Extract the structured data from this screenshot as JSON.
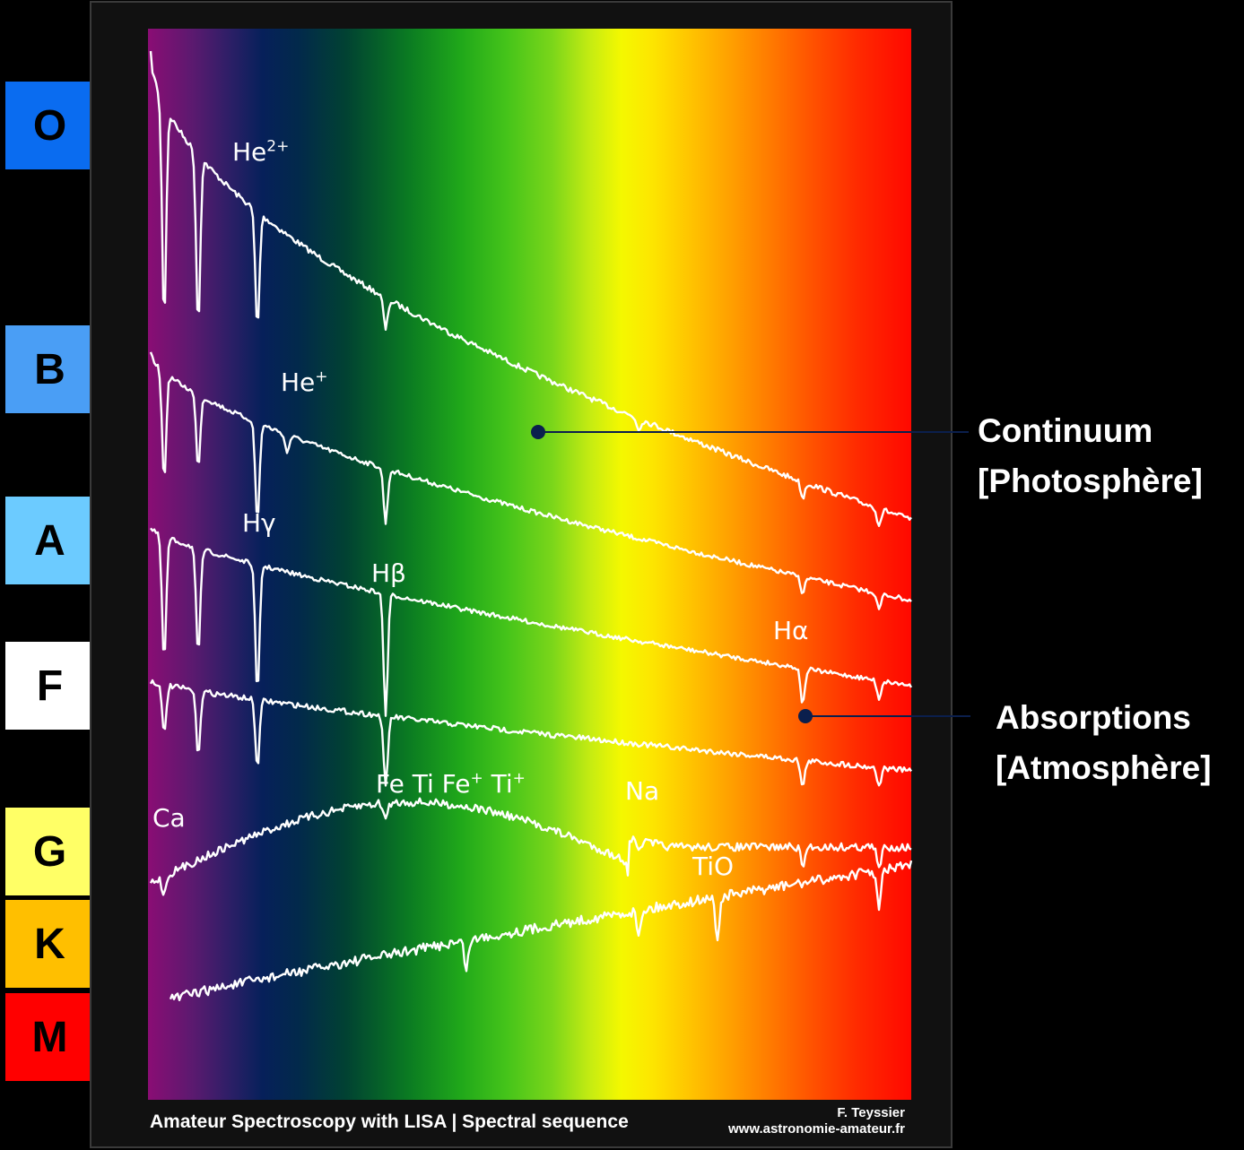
{
  "classes": [
    {
      "letter": "O",
      "color": "#0a6cf0"
    },
    {
      "letter": "B",
      "color": "#4a9ef5"
    },
    {
      "letter": "A",
      "color": "#6ccbff"
    },
    {
      "letter": "F",
      "color": "#ffffff"
    },
    {
      "letter": "G",
      "color": "#ffff66"
    },
    {
      "letter": "K",
      "color": "#ffbf00"
    },
    {
      "letter": "M",
      "color": "#ff0000"
    }
  ],
  "line_labels": {
    "he2": {
      "base": "He",
      "sup": "2+"
    },
    "he1": {
      "base": "He",
      "sup": "+"
    },
    "hgamma": "Hγ",
    "hbeta": "Hβ",
    "halpha": "Hα",
    "metals": {
      "fe": "Fe",
      "ti": "Ti",
      "fe_ion": "Fe",
      "fe_ion_sup": "+",
      "ti_ion": "Ti",
      "ti_ion_sup": "+"
    },
    "na": "Na",
    "ca": "Ca",
    "tio": "TiO"
  },
  "annotations": {
    "continuum": {
      "line1": "Continuum",
      "line2": "[Photosphère]"
    },
    "absorptions": {
      "line1": "Absorptions",
      "line2": "[Atmosphère]"
    }
  },
  "footer": {
    "title": "Amateur Spectroscopy with LISA | Spectral sequence",
    "author": "F. Teyssier",
    "url": "www.astronomie-amateur.fr"
  },
  "colors": {
    "curve": "#ffffff",
    "marker": "#0b1f4d",
    "leader": "#0b1f4d"
  }
}
